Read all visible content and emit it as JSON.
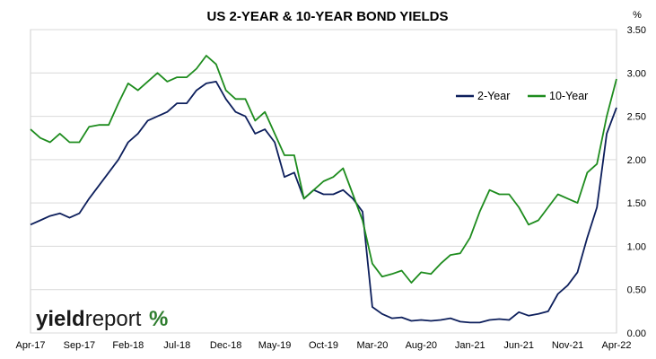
{
  "chart_data": {
    "type": "line",
    "title": "US 2-YEAR & 10-YEAR BOND YIELDS",
    "yunit": "%",
    "ylim": [
      0,
      3.5
    ],
    "yticks": [
      "0.00",
      "0.50",
      "1.00",
      "1.50",
      "2.00",
      "2.50",
      "3.00",
      "3.50"
    ],
    "xticks": [
      "Apr-17",
      "Sep-17",
      "Feb-18",
      "Jul-18",
      "Dec-18",
      "May-19",
      "Oct-19",
      "Mar-20",
      "Aug-20",
      "Jan-21",
      "Jun-21",
      "Nov-21",
      "Apr-22"
    ],
    "grid": "horizontal",
    "legend": "top-right",
    "x": [
      "Apr-17",
      "May-17",
      "Jun-17",
      "Jul-17",
      "Aug-17",
      "Sep-17",
      "Oct-17",
      "Nov-17",
      "Dec-17",
      "Jan-18",
      "Feb-18",
      "Mar-18",
      "Apr-18",
      "May-18",
      "Jun-18",
      "Jul-18",
      "Aug-18",
      "Sep-18",
      "Oct-18",
      "Nov-18",
      "Dec-18",
      "Jan-19",
      "Feb-19",
      "Mar-19",
      "Apr-19",
      "May-19",
      "Jun-19",
      "Jul-19",
      "Aug-19",
      "Sep-19",
      "Oct-19",
      "Nov-19",
      "Dec-19",
      "Jan-20",
      "Feb-20",
      "Mar-20",
      "Apr-20",
      "May-20",
      "Jun-20",
      "Jul-20",
      "Aug-20",
      "Sep-20",
      "Oct-20",
      "Nov-20",
      "Dec-20",
      "Jan-21",
      "Feb-21",
      "Mar-21",
      "Apr-21",
      "May-21",
      "Jun-21",
      "Jul-21",
      "Aug-21",
      "Sep-21",
      "Oct-21",
      "Nov-21",
      "Dec-21",
      "Jan-22",
      "Feb-22",
      "Mar-22",
      "Apr-22"
    ],
    "series": [
      {
        "name": "2-Year",
        "color": "#0d1f5c",
        "values": [
          1.25,
          1.3,
          1.35,
          1.38,
          1.33,
          1.38,
          1.55,
          1.7,
          1.85,
          2.0,
          2.2,
          2.3,
          2.45,
          2.5,
          2.55,
          2.65,
          2.65,
          2.8,
          2.88,
          2.9,
          2.7,
          2.55,
          2.5,
          2.3,
          2.35,
          2.2,
          1.8,
          1.85,
          1.55,
          1.65,
          1.6,
          1.6,
          1.65,
          1.55,
          1.4,
          0.3,
          0.22,
          0.17,
          0.18,
          0.14,
          0.15,
          0.14,
          0.15,
          0.17,
          0.13,
          0.12,
          0.12,
          0.15,
          0.16,
          0.15,
          0.24,
          0.2,
          0.22,
          0.25,
          0.45,
          0.55,
          0.7,
          1.1,
          1.45,
          2.3,
          2.6
        ]
      },
      {
        "name": "10-Year",
        "color": "#1e8c1e",
        "values": [
          2.35,
          2.25,
          2.2,
          2.3,
          2.2,
          2.2,
          2.38,
          2.4,
          2.4,
          2.65,
          2.88,
          2.8,
          2.9,
          3.0,
          2.9,
          2.95,
          2.95,
          3.05,
          3.2,
          3.1,
          2.8,
          2.7,
          2.7,
          2.45,
          2.55,
          2.3,
          2.05,
          2.05,
          1.55,
          1.65,
          1.75,
          1.8,
          1.9,
          1.6,
          1.3,
          0.8,
          0.65,
          0.68,
          0.72,
          0.58,
          0.7,
          0.68,
          0.8,
          0.9,
          0.92,
          1.1,
          1.4,
          1.65,
          1.6,
          1.6,
          1.45,
          1.25,
          1.3,
          1.45,
          1.6,
          1.55,
          1.5,
          1.85,
          1.95,
          2.5,
          2.93
        ]
      }
    ]
  },
  "logo": {
    "word1": "yield",
    "word2": "report",
    "symbol": "%"
  }
}
